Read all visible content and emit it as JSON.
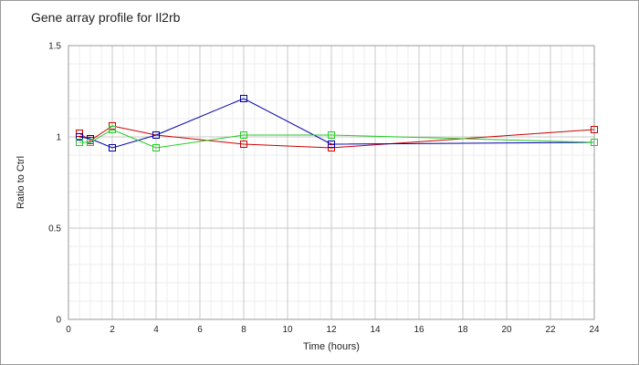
{
  "chart_data": {
    "type": "line",
    "title": "Gene array profile for Il2rb",
    "xlabel": "Time (hours)",
    "ylabel": "Ratio to Ctrl",
    "xlim": [
      0,
      24
    ],
    "ylim": [
      0,
      1.5
    ],
    "x_ticks": [
      0,
      2,
      4,
      6,
      8,
      10,
      12,
      14,
      16,
      18,
      20,
      22,
      24
    ],
    "y_ticks": [
      0,
      0.5,
      1,
      1.5
    ],
    "y_tick_labels": [
      "0",
      "0.5",
      "1",
      "1.5"
    ],
    "grid": true,
    "legend": "none",
    "series": [
      {
        "color": "#cc0000",
        "points": [
          [
            0.5,
            1.02
          ],
          [
            1,
            0.98
          ],
          [
            2,
            1.06
          ],
          [
            4,
            1.01
          ],
          [
            8,
            0.96
          ],
          [
            12,
            0.94
          ],
          [
            24,
            1.04
          ]
        ]
      },
      {
        "color": "#0000aa",
        "points": [
          [
            0.5,
            1.0
          ],
          [
            1,
            0.99
          ],
          [
            2,
            0.94
          ],
          [
            4,
            1.01
          ],
          [
            8,
            1.21
          ],
          [
            12,
            0.96
          ],
          [
            24,
            0.97
          ]
        ]
      },
      {
        "color": "#22cc22",
        "points": [
          [
            0.5,
            0.97
          ],
          [
            1,
            0.97
          ],
          [
            2,
            1.04
          ],
          [
            4,
            0.94
          ],
          [
            8,
            1.01
          ],
          [
            12,
            1.01
          ],
          [
            24,
            0.97
          ]
        ]
      }
    ]
  }
}
